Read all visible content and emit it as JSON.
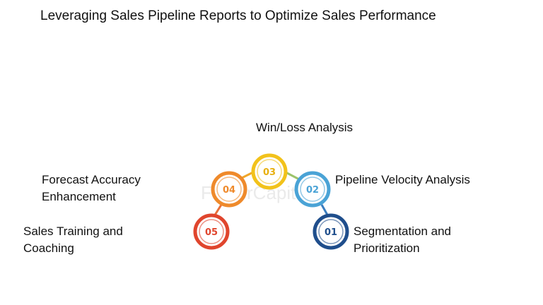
{
  "title": "Leveraging Sales Pipeline Reports to Optimize Sales Performance",
  "watermark": "FasterCapital",
  "steps": [
    {
      "number": "01",
      "label_lines": [
        "Segmentation and",
        "Prioritization"
      ],
      "color": "#1f4e8c"
    },
    {
      "number": "02",
      "label_lines": [
        "Pipeline Velocity Analysis"
      ],
      "color": "#4aa3d6"
    },
    {
      "number": "03",
      "label_lines": [
        "Win/Loss Analysis"
      ],
      "color": "#f2c21b"
    },
    {
      "number": "04",
      "label_lines": [
        "Forecast Accuracy",
        "Enhancement"
      ],
      "color": "#ef8a2b"
    },
    {
      "number": "05",
      "label_lines": [
        "Sales Training and",
        "Coaching"
      ],
      "color": "#e0452d"
    }
  ]
}
